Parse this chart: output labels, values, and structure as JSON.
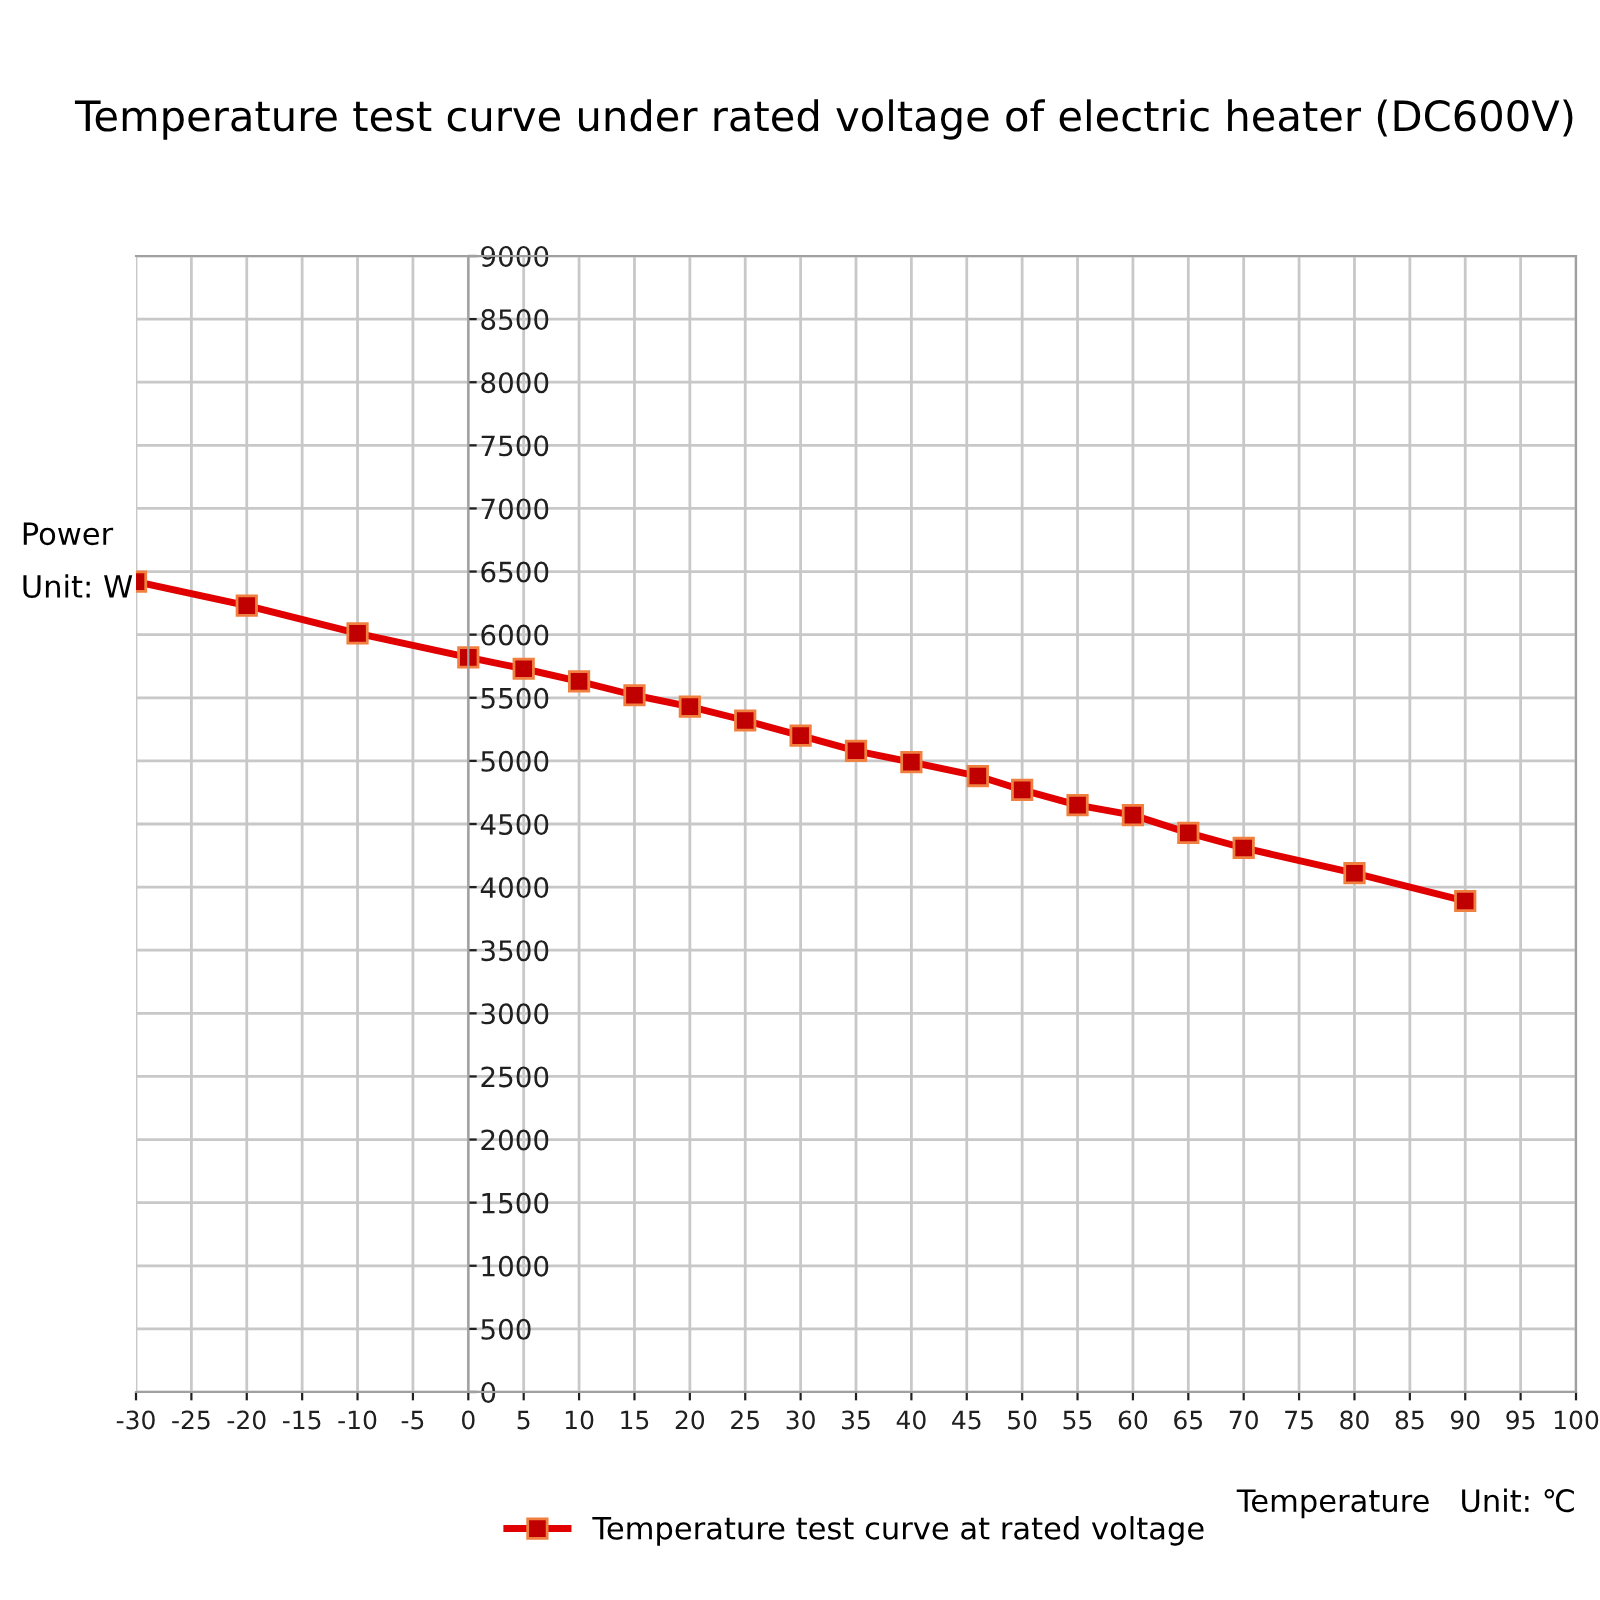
{
  "chart_data": {
    "type": "line",
    "title": "Temperature test curve under rated voltage of electric heater (DC600V)",
    "xlabel": "Temperature   Unit: ℃",
    "ylabel": "Power\nUnit: W",
    "x": [
      -30,
      -20,
      -10,
      0,
      5,
      10,
      15,
      20,
      25,
      30,
      35,
      40,
      46,
      50,
      55,
      60,
      65,
      70,
      80,
      90
    ],
    "series": [
      {
        "name": "Temperature test curve at rated voltage",
        "color": "#e00000",
        "values": [
          6420,
          6230,
          6010,
          5820,
          5730,
          5630,
          5520,
          5430,
          5320,
          5200,
          5080,
          4990,
          4880,
          4770,
          4650,
          4570,
          4430,
          4310,
          4110,
          3890
        ]
      }
    ],
    "xlim": [
      -30,
      100
    ],
    "xticks": [
      -30,
      -25,
      -20,
      -15,
      -10,
      -5,
      0,
      5,
      10,
      15,
      20,
      25,
      30,
      35,
      40,
      45,
      50,
      55,
      60,
      65,
      70,
      75,
      80,
      85,
      90,
      95,
      100
    ],
    "ylim": [
      0,
      9000
    ],
    "yticks": [
      0,
      500,
      1000,
      1500,
      2000,
      2500,
      3000,
      3500,
      4000,
      4500,
      5000,
      5500,
      6000,
      6500,
      7000,
      7500,
      8000,
      8500,
      9000
    ],
    "grid": true,
    "legend": "bottom",
    "marker": "square",
    "line_style": "solid"
  }
}
